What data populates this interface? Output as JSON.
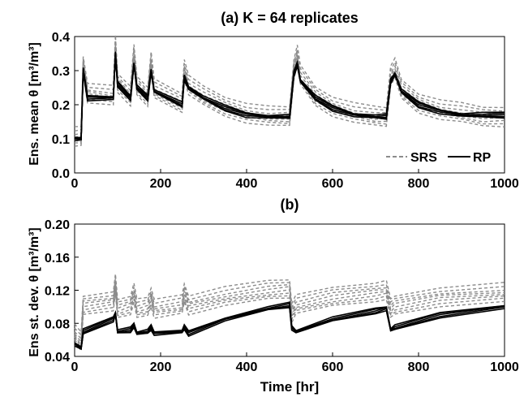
{
  "figure": {
    "panel_a_title": "(a) K = 64 replicates",
    "panel_b_title": "(b)",
    "panel_a_ylabel": "Ens. mean θ [m³/m³]",
    "panel_b_ylabel": "Ens st. dev. θ [m³/m³]",
    "xlabel": "Time [hr]",
    "legend": [
      "SRS",
      "RP"
    ]
  },
  "chart_data": [
    {
      "type": "line",
      "title": "(a) K = 64 replicates",
      "xlabel": "",
      "ylabel": "Ens. mean θ [m³/m³]",
      "xlim": [
        0,
        1000
      ],
      "ylim": [
        0,
        0.4
      ],
      "x_ticks": [
        0,
        200,
        400,
        600,
        800,
        1000
      ],
      "y_ticks": [
        0.0,
        0.1,
        0.2,
        0.3,
        0.4
      ],
      "x_tick_labels": [
        "0",
        "200",
        "400",
        "600",
        "800",
        "1000"
      ],
      "y_tick_labels": [
        "0.0",
        "0.1",
        "0.2",
        "0.3",
        "0.4"
      ],
      "legend_position": "bottom-right",
      "series": [
        {
          "name": "SRS",
          "color": "#8c8c8c",
          "style": "dashed",
          "x": [
            0,
            15,
            20,
            30,
            90,
            95,
            100,
            130,
            138,
            145,
            170,
            178,
            185,
            250,
            255,
            265,
            300,
            350,
            400,
            450,
            500,
            510,
            518,
            525,
            560,
            600,
            650,
            700,
            725,
            735,
            745,
            760,
            800,
            850,
            900,
            950,
            1000
          ],
          "y": [
            0.1,
            0.1,
            0.31,
            0.23,
            0.22,
            0.37,
            0.26,
            0.22,
            0.34,
            0.25,
            0.22,
            0.32,
            0.24,
            0.2,
            0.3,
            0.25,
            0.22,
            0.19,
            0.17,
            0.16,
            0.16,
            0.3,
            0.34,
            0.28,
            0.22,
            0.19,
            0.17,
            0.16,
            0.16,
            0.28,
            0.3,
            0.24,
            0.2,
            0.18,
            0.17,
            0.16,
            0.16
          ]
        },
        {
          "name": "RP",
          "color": "#000000",
          "style": "solid",
          "x": [
            0,
            15,
            20,
            30,
            90,
            95,
            100,
            130,
            138,
            145,
            170,
            178,
            185,
            250,
            255,
            265,
            300,
            350,
            400,
            450,
            500,
            510,
            518,
            525,
            560,
            600,
            650,
            700,
            725,
            735,
            745,
            760,
            800,
            850,
            900,
            950,
            1000
          ],
          "y": [
            0.1,
            0.1,
            0.3,
            0.22,
            0.22,
            0.35,
            0.26,
            0.22,
            0.32,
            0.25,
            0.22,
            0.3,
            0.24,
            0.2,
            0.28,
            0.25,
            0.22,
            0.19,
            0.17,
            0.165,
            0.165,
            0.29,
            0.32,
            0.27,
            0.22,
            0.19,
            0.17,
            0.165,
            0.165,
            0.27,
            0.29,
            0.24,
            0.2,
            0.18,
            0.17,
            0.17,
            0.17
          ]
        }
      ]
    },
    {
      "type": "line",
      "title": "(b)",
      "xlabel": "Time [hr]",
      "ylabel": "Ens st. dev. θ [m³/m³]",
      "xlim": [
        0,
        1000
      ],
      "ylim": [
        0.04,
        0.2
      ],
      "x_ticks": [
        0,
        200,
        400,
        600,
        800,
        1000
      ],
      "y_ticks": [
        0.04,
        0.08,
        0.12,
        0.16,
        0.2
      ],
      "x_tick_labels": [
        "0",
        "200",
        "400",
        "600",
        "800",
        "1000"
      ],
      "y_tick_labels": [
        "0.04",
        "0.08",
        "0.12",
        "0.16",
        "0.20"
      ],
      "series": [
        {
          "name": "SRS",
          "color": "#8c8c8c",
          "style": "dashed",
          "x": [
            0,
            15,
            20,
            90,
            95,
            100,
            130,
            138,
            145,
            170,
            178,
            185,
            250,
            255,
            265,
            350,
            450,
            500,
            505,
            515,
            600,
            700,
            725,
            735,
            745,
            850,
            1000
          ],
          "y": [
            0.065,
            0.055,
            0.1,
            0.105,
            0.125,
            0.095,
            0.1,
            0.115,
            0.095,
            0.098,
            0.11,
            0.095,
            0.1,
            0.115,
            0.1,
            0.11,
            0.118,
            0.12,
            0.09,
            0.1,
            0.11,
            0.116,
            0.118,
            0.095,
            0.1,
            0.11,
            0.115
          ]
        },
        {
          "name": "RP",
          "color": "#000000",
          "style": "solid",
          "x": [
            0,
            15,
            20,
            90,
            95,
            100,
            130,
            138,
            145,
            170,
            178,
            185,
            250,
            255,
            265,
            350,
            450,
            500,
            505,
            515,
            600,
            700,
            725,
            735,
            745,
            850,
            1000
          ],
          "y": [
            0.055,
            0.05,
            0.07,
            0.085,
            0.092,
            0.07,
            0.072,
            0.078,
            0.068,
            0.07,
            0.075,
            0.068,
            0.07,
            0.075,
            0.068,
            0.085,
            0.098,
            0.102,
            0.075,
            0.07,
            0.085,
            0.095,
            0.098,
            0.072,
            0.075,
            0.09,
            0.1
          ]
        }
      ]
    }
  ]
}
